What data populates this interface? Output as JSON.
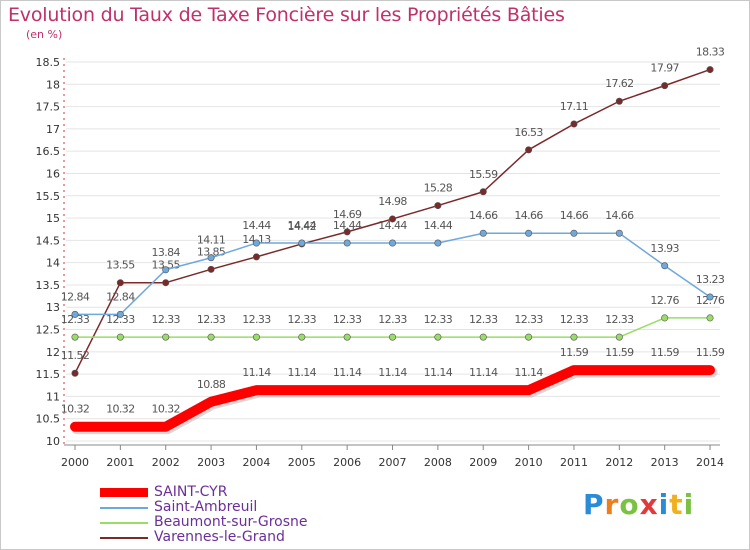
{
  "chart_data": {
    "type": "line",
    "title": "Evolution du Taux de Taxe Foncière sur les Propriétés Bâties",
    "ylabel": "(en %)",
    "xlabel": "",
    "ylim": [
      10,
      18.5
    ],
    "yticks": [
      "10",
      "10.5",
      "11",
      "11.5",
      "12",
      "12.5",
      "13",
      "13.5",
      "14",
      "14.5",
      "15",
      "15.5",
      "16",
      "16.5",
      "17",
      "17.5",
      "18",
      "18.5"
    ],
    "categories": [
      "2000",
      "2001",
      "2002",
      "2003",
      "2004",
      "2005",
      "2006",
      "2007",
      "2008",
      "2009",
      "2010",
      "2011",
      "2012",
      "2013",
      "2014"
    ],
    "series": [
      {
        "name": "SAINT-CYR",
        "color": "#ff0000",
        "values": [
          10.32,
          10.32,
          10.32,
          10.88,
          11.14,
          11.14,
          11.14,
          11.14,
          11.14,
          11.14,
          11.14,
          11.59,
          11.59,
          11.59,
          11.59
        ],
        "labels": [
          "10.32",
          "10.32",
          "10.32",
          "10.88",
          "11.14",
          "11.14",
          "11.14",
          "11.14",
          "11.14",
          "11.14",
          "11.14",
          "11.59",
          "11.59",
          "11.59",
          "11.59"
        ]
      },
      {
        "name": "Saint-Ambreuil",
        "color": "#6fa8dc",
        "values": [
          12.84,
          12.84,
          13.84,
          14.11,
          14.44,
          14.44,
          14.44,
          14.44,
          14.44,
          14.66,
          14.66,
          14.66,
          14.66,
          13.93,
          13.23
        ],
        "labels": [
          "12.84",
          "12.84",
          "13.84",
          "14.11",
          "14.44",
          "14.44",
          "14.44",
          "14.44",
          "14.44",
          "14.66",
          "14.66",
          "14.66",
          "14.66",
          "13.93",
          "13.23"
        ]
      },
      {
        "name": "Beaumont-sur-Grosne",
        "color": "#99dd66",
        "values": [
          12.33,
          12.33,
          12.33,
          12.33,
          12.33,
          12.33,
          12.33,
          12.33,
          12.33,
          12.33,
          12.33,
          12.33,
          12.33,
          12.76,
          12.76
        ],
        "labels": [
          "12.33",
          "12.33",
          "12.33",
          "12.33",
          "12.33",
          "12.33",
          "12.33",
          "12.33",
          "12.33",
          "12.33",
          "12.33",
          "12.33",
          "12.33",
          "12.76",
          "12.76"
        ]
      },
      {
        "name": "Varennes-le-Grand",
        "color": "#7a2a2a",
        "values": [
          11.52,
          13.55,
          13.55,
          13.85,
          14.13,
          14.42,
          14.69,
          14.98,
          15.28,
          15.59,
          16.53,
          17.11,
          17.62,
          17.97,
          18.33
        ],
        "labels": [
          "11.52",
          "13.55",
          "13.55",
          "13.85",
          "14.13",
          "14.42",
          "14.69",
          "14.98",
          "15.28",
          "15.59",
          "16.53",
          "17.11",
          "17.62",
          "17.97",
          "18.33"
        ]
      }
    ],
    "legend": "bottom-left"
  },
  "colors": {
    "title": "#c0306a",
    "grid": "#e4e4e4",
    "axis": "#888888"
  },
  "logo": {
    "letters": [
      "P",
      "r",
      "o",
      "x",
      "i",
      "t",
      "i"
    ],
    "letter_colors": [
      "#2a8bd6",
      "#ee7d1a",
      "#7cc242",
      "#e23a3a",
      "#2a8bd6",
      "#f2b01e",
      "#7cc242"
    ]
  }
}
